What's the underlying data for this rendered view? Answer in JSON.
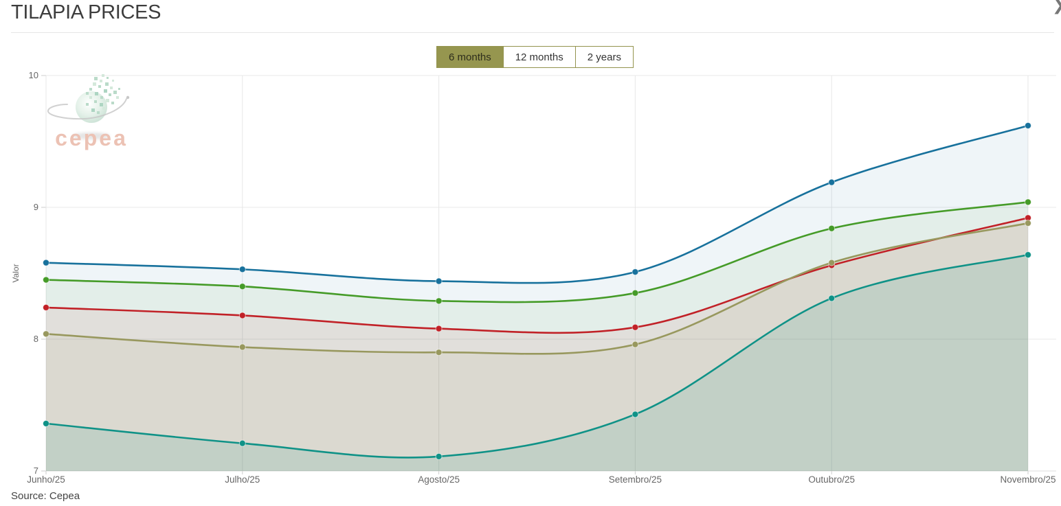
{
  "header": {
    "title": "TILAPIA PRICES",
    "chevron": "❯"
  },
  "range_selector": {
    "buttons": [
      {
        "label": "6 months",
        "selected": true
      },
      {
        "label": "12 months",
        "selected": false
      },
      {
        "label": "2 years",
        "selected": false
      }
    ]
  },
  "logo": {
    "text": "cepea"
  },
  "source": {
    "text": "Source: Cepea"
  },
  "chart_data": {
    "type": "area",
    "title": "",
    "xlabel": "",
    "ylabel": "Valor",
    "x": [
      "Junho/25",
      "Julho/25",
      "Agosto/25",
      "Setembro/25",
      "Outubro/25",
      "Novembro/25"
    ],
    "yticks": [
      7,
      8,
      9,
      10
    ],
    "ylim": [
      7,
      10
    ],
    "grid": true,
    "legend": "none",
    "smooth": true,
    "series": [
      {
        "name": "blue",
        "color": "#17719c",
        "fill_opacity": 0.07,
        "values": [
          8.58,
          8.53,
          8.44,
          8.51,
          9.19,
          9.62
        ]
      },
      {
        "name": "green",
        "color": "#459b28",
        "fill_opacity": 0.07,
        "values": [
          8.45,
          8.4,
          8.29,
          8.35,
          8.84,
          9.04
        ]
      },
      {
        "name": "red",
        "color": "#c12127",
        "fill_opacity": 0.07,
        "values": [
          8.24,
          8.18,
          8.08,
          8.09,
          8.56,
          8.92
        ]
      },
      {
        "name": "olive",
        "color": "#98985e",
        "fill_opacity": 0.08,
        "values": [
          8.04,
          7.94,
          7.9,
          7.96,
          8.58,
          8.88
        ]
      },
      {
        "name": "teal",
        "color": "#0f9287",
        "fill_opacity": 0.12,
        "values": [
          7.36,
          7.21,
          7.11,
          7.43,
          8.31,
          8.64
        ]
      }
    ]
  }
}
